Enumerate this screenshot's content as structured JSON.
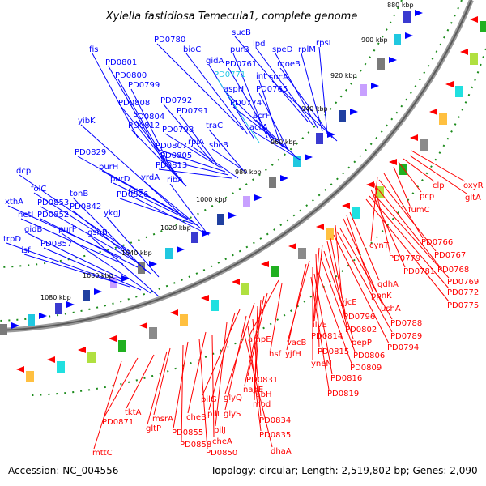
{
  "title": "Xylella fastidiosa Temecula1, complete genome",
  "accession": "Accession: NC_004556",
  "summary": "Topology: circular; Length: 2,519,802 bp; Genes: 2,090",
  "colors": {
    "forward": "#0000ff",
    "reverse": "#ff0000",
    "highlight": "#22c6e6",
    "backbone": "#777777",
    "dots": "#1a8a1a"
  },
  "kbp_ticks": [
    "880 kbp",
    "900 kbp",
    "920 kbp",
    "940 kbp",
    "960 kbp",
    "980 kbp",
    "1000 kbp",
    "1020 kbp",
    "1040 kbp",
    "1060 kbp",
    "1080 kbp"
  ],
  "forward_labels": [
    "fis",
    "PD0801",
    "PD0800",
    "PD0799",
    "PD0808",
    "PD0804",
    "PD0812",
    "PD0792",
    "PD0791",
    "PD0798",
    "PD0807",
    "PD0805",
    "PD0813",
    "PD0780",
    "bioC",
    "gidA",
    "PD0771",
    "purB",
    "PD0761",
    "int",
    "aspH",
    "PD0765",
    "PD0774",
    "acrF",
    "acrA",
    "traC",
    "sbcB",
    "rplA",
    "sucB",
    "lpd",
    "speD",
    "rplM",
    "rpsI",
    "moeB",
    "sucA",
    "yibK",
    "PD0829",
    "purH",
    "purD",
    "PD0826",
    "yrdA",
    "ribA",
    "folE",
    "dcp",
    "folC",
    "xthA",
    "PD0853",
    "hetI",
    "PD0852",
    "tonB",
    "PD0842",
    "ykgJ",
    "gidB",
    "trpD",
    "isf",
    "PD0857",
    "purF",
    "gshB"
  ],
  "reverse_labels": [
    "oxyR",
    "gltA",
    "clp",
    "pcp",
    "fumC",
    "PD0766",
    "cynT",
    "PD0767",
    "PD0779",
    "PD0768",
    "PD0781",
    "PD0769",
    "PD0772",
    "PD0775",
    "gdhA",
    "ppnK",
    "ushA",
    "yjcE",
    "PD0788",
    "PD0789",
    "PD0794",
    "PD0796",
    "PD0802",
    "ilvE",
    "PD0814",
    "pepP",
    "PD0815",
    "PD0806",
    "vacB",
    "yjfH",
    "yneN",
    "PD0809",
    "PD0816",
    "PD0819",
    "ampE",
    "hsf",
    "PD0831",
    "nadE",
    "fabH",
    "glyQ",
    "mod",
    "pilG",
    "pilI",
    "glyS",
    "PD0834",
    "pilJ",
    "PD0835",
    "dhaA",
    "cheB",
    "cheA",
    "PD0850",
    "PD0855",
    "PD0858",
    "msrA",
    "gltP",
    "tktA",
    "PD0871",
    "mttC"
  ]
}
